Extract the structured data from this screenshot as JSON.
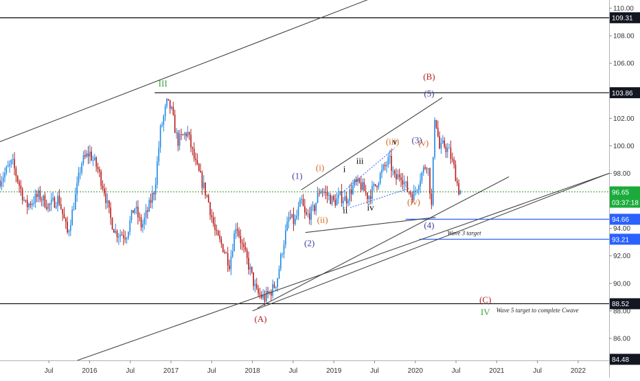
{
  "chart_data": {
    "type": "candlestick",
    "title": "",
    "xlabel": "",
    "ylabel": "",
    "ylim": [
      84.4,
      110.6
    ],
    "x_range": [
      2014.9,
      2022.38
    ],
    "grid": false,
    "y_ticks": [
      "110.00",
      "108.00",
      "106.00",
      "104.00",
      "102.00",
      "100.00",
      "98.00",
      "94.00",
      "92.00",
      "90.00",
      "88.00",
      "86.00"
    ],
    "x_ticks": [
      {
        "label": "Jul",
        "x": 2015.5
      },
      {
        "label": "2016",
        "x": 2016.0
      },
      {
        "label": "Jul",
        "x": 2016.5
      },
      {
        "label": "2017",
        "x": 2017.0
      },
      {
        "label": "Jul",
        "x": 2017.5
      },
      {
        "label": "2018",
        "x": 2018.0
      },
      {
        "label": "Jul",
        "x": 2018.5
      },
      {
        "label": "2019",
        "x": 2019.0
      },
      {
        "label": "Jul",
        "x": 2019.5
      },
      {
        "label": "2020",
        "x": 2020.0
      },
      {
        "label": "Jul",
        "x": 2020.5
      },
      {
        "label": "2021",
        "x": 2021.0
      },
      {
        "label": "Jul",
        "x": 2021.5
      },
      {
        "label": "2022",
        "x": 2022.0
      }
    ],
    "price_badges": [
      {
        "label": "109.31",
        "value": 109.31,
        "style": "dark"
      },
      {
        "label": "103.86",
        "value": 103.86,
        "style": "dark"
      },
      {
        "label": "96.65",
        "value": 96.65,
        "style": "green"
      },
      {
        "label": "03:37:18",
        "value": 95.9,
        "style": "green"
      },
      {
        "label": "94.66",
        "value": 94.66,
        "style": "blue"
      },
      {
        "label": "93.21",
        "value": 93.21,
        "style": "blue"
      },
      {
        "label": "88.52",
        "value": 88.52,
        "style": "dark"
      },
      {
        "label": "84.48",
        "value": 84.48,
        "style": "dark"
      }
    ],
    "anchors": [
      [
        2014.9,
        97.5
      ],
      [
        2015.05,
        98.8
      ],
      [
        2015.22,
        95.6
      ],
      [
        2015.38,
        96.4
      ],
      [
        2015.5,
        95.6
      ],
      [
        2015.62,
        96.2
      ],
      [
        2015.73,
        93.6
      ],
      [
        2015.82,
        96.1
      ],
      [
        2015.9,
        98.8
      ],
      [
        2016.0,
        99.5
      ],
      [
        2016.1,
        98.3
      ],
      [
        2016.18,
        96.8
      ],
      [
        2016.25,
        94.8
      ],
      [
        2016.32,
        93.7
      ],
      [
        2016.45,
        93.5
      ],
      [
        2016.55,
        95.6
      ],
      [
        2016.64,
        94.1
      ],
      [
        2016.72,
        95.4
      ],
      [
        2016.8,
        96.9
      ],
      [
        2016.87,
        101.1
      ],
      [
        2016.95,
        103.1
      ],
      [
        2017.0,
        102.7
      ],
      [
        2017.08,
        100.3
      ],
      [
        2017.2,
        101.0
      ],
      [
        2017.3,
        98.7
      ],
      [
        2017.45,
        96.2
      ],
      [
        2017.55,
        93.5
      ],
      [
        2017.65,
        92.5
      ],
      [
        2017.72,
        91.4
      ],
      [
        2017.8,
        94.4
      ],
      [
        2017.88,
        92.6
      ],
      [
        2017.96,
        91.2
      ],
      [
        2018.05,
        89.3
      ],
      [
        2018.15,
        88.9
      ],
      [
        2018.25,
        89.6
      ],
      [
        2018.3,
        90.2
      ],
      [
        2018.38,
        92.9
      ],
      [
        2018.45,
        94.8
      ],
      [
        2018.52,
        94.4
      ],
      [
        2018.6,
        96.0
      ],
      [
        2018.65,
        94.8
      ],
      [
        2018.75,
        95.3
      ],
      [
        2018.83,
        96.9
      ],
      [
        2018.92,
        96.4
      ],
      [
        2019.0,
        95.9
      ],
      [
        2019.08,
        96.3
      ],
      [
        2019.15,
        96.1
      ],
      [
        2019.25,
        97.2
      ],
      [
        2019.32,
        97.2
      ],
      [
        2019.42,
        96.3
      ],
      [
        2019.5,
        97.0
      ],
      [
        2019.58,
        98.0
      ],
      [
        2019.68,
        99.0
      ],
      [
        2019.75,
        97.5
      ],
      [
        2019.82,
        98.0
      ],
      [
        2019.9,
        96.8
      ],
      [
        2019.98,
        96.4
      ],
      [
        2020.05,
        97.6
      ],
      [
        2020.15,
        98.9
      ],
      [
        2020.2,
        95.5
      ],
      [
        2020.24,
        102.4
      ],
      [
        2020.3,
        99.7
      ],
      [
        2020.35,
        100.1
      ],
      [
        2020.42,
        99.5
      ],
      [
        2020.48,
        98.3
      ],
      [
        2020.53,
        96.8
      ],
      [
        2020.58,
        96.65
      ]
    ],
    "candles": {
      "count": 288,
      "first_x": 2014.9,
      "step": 0.0197,
      "up_color": "#1e88e5",
      "down_color": "#b71c1c"
    },
    "horizontal_lines": [
      {
        "value": 109.31,
        "x_start": 2014.9,
        "color": "#000000"
      },
      {
        "value": 103.86,
        "x_start": 2016.8,
        "color": "#000000"
      },
      {
        "value": 88.52,
        "x_start": 2014.9,
        "color": "#000000"
      },
      {
        "value": 96.65,
        "x_start": 2014.9,
        "color": "#2e9e2e",
        "dotted": true
      },
      {
        "value": 94.66,
        "x_start": 2019.88,
        "color": "#2962ff"
      },
      {
        "value": 93.21,
        "x_start": 2020.05,
        "color": "#2962ff"
      }
    ],
    "trend_lines": [
      {
        "from": [
          2014.9,
          100.3
        ],
        "to": [
          2019.8,
          111.5
        ],
        "color": "#444444"
      },
      {
        "from": [
          2018.0,
          88.0
        ],
        "to": [
          2022.38,
          98.0
        ],
        "color": "#444444"
      },
      {
        "from": [
          2015.85,
          84.4
        ],
        "to": [
          2022.38,
          98.0
        ],
        "color": "#444444"
      },
      {
        "from": [
          2018.06,
          88.2
        ],
        "to": [
          2021.15,
          97.75
        ],
        "color": "#444444"
      },
      {
        "from": [
          2018.6,
          96.8
        ],
        "to": [
          2020.33,
          103.5
        ],
        "color": "#444444"
      },
      {
        "from": [
          2018.65,
          93.7
        ],
        "to": [
          2020.25,
          94.8
        ],
        "color": "#444444"
      },
      {
        "from": [
          2019.1,
          96.6
        ],
        "to": [
          2019.75,
          99.85
        ],
        "color": "#2962ff",
        "dotted": true
      },
      {
        "from": [
          2019.2,
          95.5
        ],
        "to": [
          2019.92,
          96.9
        ],
        "color": "#2962ff",
        "dotted": true
      }
    ],
    "wave_labels": [
      {
        "text": "III",
        "x": 2016.9,
        "y": 104.3,
        "color": "#3aa53a"
      },
      {
        "text": "(A)",
        "x": 2018.1,
        "y": 87.2,
        "color": "#b71c1c"
      },
      {
        "text": "(B)",
        "x": 2020.17,
        "y": 104.8,
        "color": "#b71c1c"
      },
      {
        "text": "(C)",
        "x": 2020.86,
        "y": 88.6,
        "color": "#b71c1c"
      },
      {
        "text": "IV",
        "x": 2020.86,
        "y": 87.7,
        "color": "#3aa53a"
      },
      {
        "text": "(1)",
        "x": 2018.55,
        "y": 97.6,
        "color": "#3f3f9f"
      },
      {
        "text": "(2)",
        "x": 2018.7,
        "y": 92.7,
        "color": "#3f3f9f"
      },
      {
        "text": "(3)",
        "x": 2020.02,
        "y": 100.2,
        "color": "#3f3f9f"
      },
      {
        "text": "(4)",
        "x": 2020.17,
        "y": 94.0,
        "color": "#3f3f9f"
      },
      {
        "text": "(5)",
        "x": 2020.17,
        "y": 103.6,
        "color": "#3f3f9f"
      },
      {
        "text": "(i)",
        "x": 2018.83,
        "y": 98.2,
        "color": "#d2691e"
      },
      {
        "text": "(ii)",
        "x": 2018.86,
        "y": 94.4,
        "color": "#d2691e"
      },
      {
        "text": "(iii)",
        "x": 2019.72,
        "y": 100.1,
        "color": "#d2691e"
      },
      {
        "text": "(iv)",
        "x": 2019.98,
        "y": 95.7,
        "color": "#d2691e"
      },
      {
        "text": "(v)",
        "x": 2020.1,
        "y": 100.0,
        "color": "#d2691e"
      },
      {
        "text": "i",
        "x": 2019.13,
        "y": 98.1,
        "color": "#000000"
      },
      {
        "text": "ii",
        "x": 2019.14,
        "y": 95.1,
        "color": "#000000"
      },
      {
        "text": "iii",
        "x": 2019.32,
        "y": 98.7,
        "color": "#000000"
      },
      {
        "text": "iv",
        "x": 2019.45,
        "y": 95.3,
        "color": "#000000"
      },
      {
        "text": "v",
        "x": 2019.75,
        "y": 100.1,
        "color": "#000000"
      }
    ],
    "annotations": [
      {
        "text": "Wave 3 target",
        "x": 2020.6,
        "y": 93.5
      },
      {
        "text": "Wave 5 target to complete Cwave",
        "x": 2021.5,
        "y": 87.9
      }
    ]
  }
}
